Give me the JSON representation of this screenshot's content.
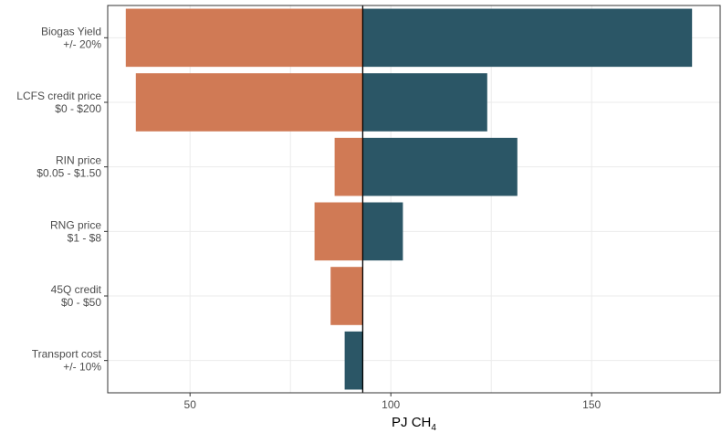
{
  "chart_data": {
    "type": "bar",
    "orientation": "horizontal",
    "title": "",
    "xlabel": {
      "text": "PJ CH",
      "subscript": "4"
    },
    "ylabel": "",
    "xlim": [
      29.5,
      182
    ],
    "xticks": [
      50,
      100,
      150
    ],
    "baseline": 93,
    "grid": true,
    "categories": [
      {
        "line1": "Biogas Yield",
        "line2": "+/- 20%"
      },
      {
        "line1": "LCFS credit price",
        "line2": "$0 - $200"
      },
      {
        "line1": "RIN price",
        "line2": "$0.05 - $1.50"
      },
      {
        "line1": "RNG price",
        "line2": "$1 - $8"
      },
      {
        "line1": "45Q credit",
        "line2": "$0 - $50"
      },
      {
        "line1": "Transport cost",
        "line2": "+/- 10%"
      }
    ],
    "series": [
      {
        "values": [
          [
            34,
            93
          ],
          [
            36.5,
            93
          ],
          [
            86,
            93
          ],
          [
            81,
            93
          ],
          [
            85,
            93
          ],
          null
        ]
      },
      {
        "values": [
          [
            93,
            175
          ],
          [
            93,
            124
          ],
          [
            93,
            131.5
          ],
          [
            93,
            103
          ],
          null,
          [
            88.5,
            93
          ]
        ]
      }
    ],
    "colors": {
      "low": "#d07a55",
      "high": "#2b5666",
      "baseline": "#000000",
      "grid": "#ebebeb",
      "panel_border": "#333333"
    }
  }
}
